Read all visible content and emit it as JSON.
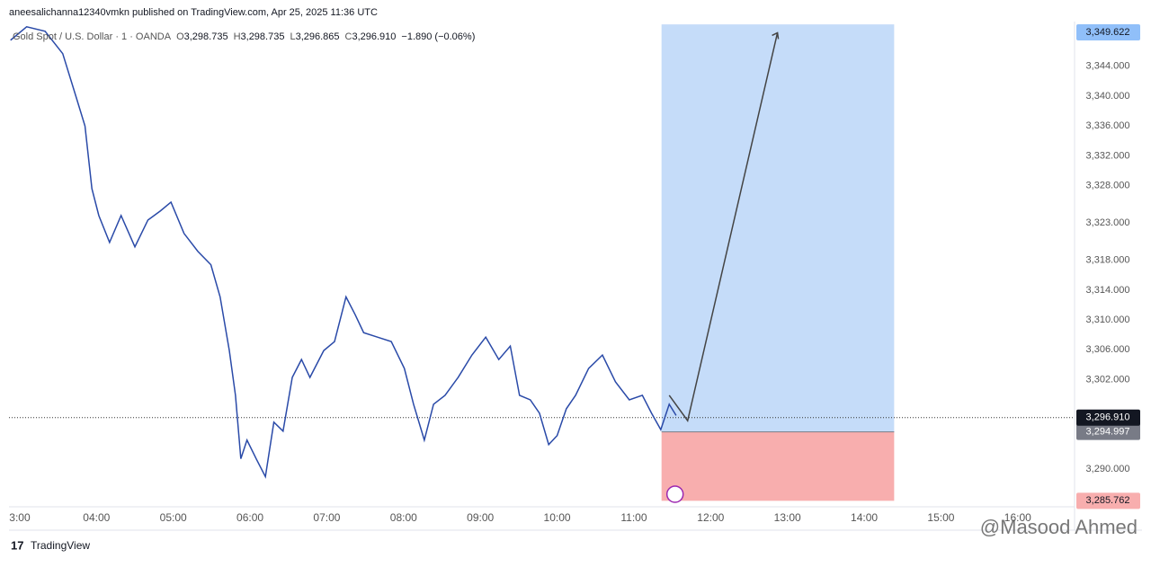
{
  "header": {
    "text": "aneesalichanna12340vmkn published on TradingView.com, Apr 25, 2025 11:36 UTC"
  },
  "chart_data": {
    "type": "line",
    "symbol": "Gold Spot / U.S. Dollar · 1 · OANDA",
    "ohlc": [
      {
        "key": "O",
        "text": "3,298.735"
      },
      {
        "key": "H",
        "text": "3,298.735"
      },
      {
        "key": "L",
        "text": "3,296.865"
      },
      {
        "key": "C",
        "text": "3,296.910"
      }
    ],
    "change": "−1.890 (−0.06%)",
    "color": "#2a4aa8",
    "x": [
      2.88,
      3.09,
      3.33,
      3.56,
      3.74,
      3.85,
      3.94,
      4.03,
      4.17,
      4.32,
      4.5,
      4.67,
      4.83,
      4.97,
      5.14,
      5.32,
      5.49,
      5.61,
      5.73,
      5.81,
      5.88,
      5.96,
      6.08,
      6.2,
      6.31,
      6.43,
      6.55,
      6.67,
      6.78,
      6.96,
      7.1,
      7.25,
      7.37,
      7.48,
      7.66,
      7.84,
      8.01,
      8.13,
      8.27,
      8.39,
      8.54,
      8.71,
      8.89,
      9.07,
      9.24,
      9.39,
      9.51,
      9.65,
      9.77,
      9.89,
      10.0,
      10.12,
      10.24,
      10.41,
      10.59,
      10.76,
      10.94,
      11.11,
      11.23,
      11.35,
      11.46,
      11.55
    ],
    "values": [
      3347.5,
      3349.3,
      3348.7,
      3345.7,
      3339.7,
      3336.0,
      3327.6,
      3324.0,
      3320.4,
      3324.0,
      3319.8,
      3323.4,
      3324.6,
      3325.8,
      3321.6,
      3319.2,
      3317.4,
      3313.1,
      3305.9,
      3299.9,
      3291.4,
      3293.9,
      3291.4,
      3289.0,
      3296.3,
      3295.1,
      3302.3,
      3304.7,
      3302.3,
      3305.9,
      3307.1,
      3313.1,
      3310.7,
      3308.3,
      3307.7,
      3307.1,
      3303.5,
      3298.7,
      3293.9,
      3298.7,
      3299.9,
      3302.3,
      3305.3,
      3307.7,
      3304.7,
      3306.5,
      3299.9,
      3299.3,
      3297.5,
      3293.3,
      3294.5,
      3298.1,
      3299.9,
      3303.5,
      3305.3,
      3301.7,
      3299.3,
      3299.9,
      3297.5,
      3295.3,
      3298.7,
      3297.2
    ],
    "xlim": [
      2.86,
      16.74
    ],
    "ylim": [
      3285.2,
      3350
    ],
    "xticks": [
      {
        "value": 3,
        "label": "3:00"
      },
      {
        "value": 4,
        "label": "04:00"
      },
      {
        "value": 5,
        "label": "05:00"
      },
      {
        "value": 6,
        "label": "06:00"
      },
      {
        "value": 7,
        "label": "07:00"
      },
      {
        "value": 8,
        "label": "08:00"
      },
      {
        "value": 9,
        "label": "09:00"
      },
      {
        "value": 10,
        "label": "10:00"
      },
      {
        "value": 11,
        "label": "11:00"
      },
      {
        "value": 12,
        "label": "12:00"
      },
      {
        "value": 13,
        "label": "13:00"
      },
      {
        "value": 14,
        "label": "14:00"
      },
      {
        "value": 15,
        "label": "15:00"
      },
      {
        "value": 16,
        "label": "16:00"
      }
    ],
    "yticks": [
      {
        "value": 3290,
        "label": "3,290.000"
      },
      {
        "value": 3302,
        "label": "3,302.000"
      },
      {
        "value": 3306,
        "label": "3,306.000"
      },
      {
        "value": 3310,
        "label": "3,310.000"
      },
      {
        "value": 3314,
        "label": "3,314.000"
      },
      {
        "value": 3318,
        "label": "3,318.000"
      },
      {
        "value": 3323,
        "label": "3,323.000"
      },
      {
        "value": 3328,
        "label": "3,328.000"
      },
      {
        "value": 3332,
        "label": "3,332.000"
      },
      {
        "value": 3336,
        "label": "3,336.000"
      },
      {
        "value": 3340,
        "label": "3,340.000"
      },
      {
        "value": 3344,
        "label": "3,344.000"
      }
    ],
    "last_price": {
      "value": 3296.91,
      "label": "3,296.910"
    },
    "position": {
      "start": 11.36,
      "end": 14.39,
      "target": {
        "value": 3349.622,
        "label": "3,349.622"
      },
      "entry": {
        "value": 3294.997,
        "label": "3,294.997"
      },
      "stop": {
        "value": 3285.762,
        "label": "3,285.762"
      }
    },
    "projection": {
      "x": [
        11.46,
        11.7,
        12.87
      ],
      "values": [
        3299.9,
        3296.5,
        3348.5
      ]
    }
  },
  "footer": {
    "logo": "TradingView",
    "watermark": "@Masood Ahmed"
  }
}
